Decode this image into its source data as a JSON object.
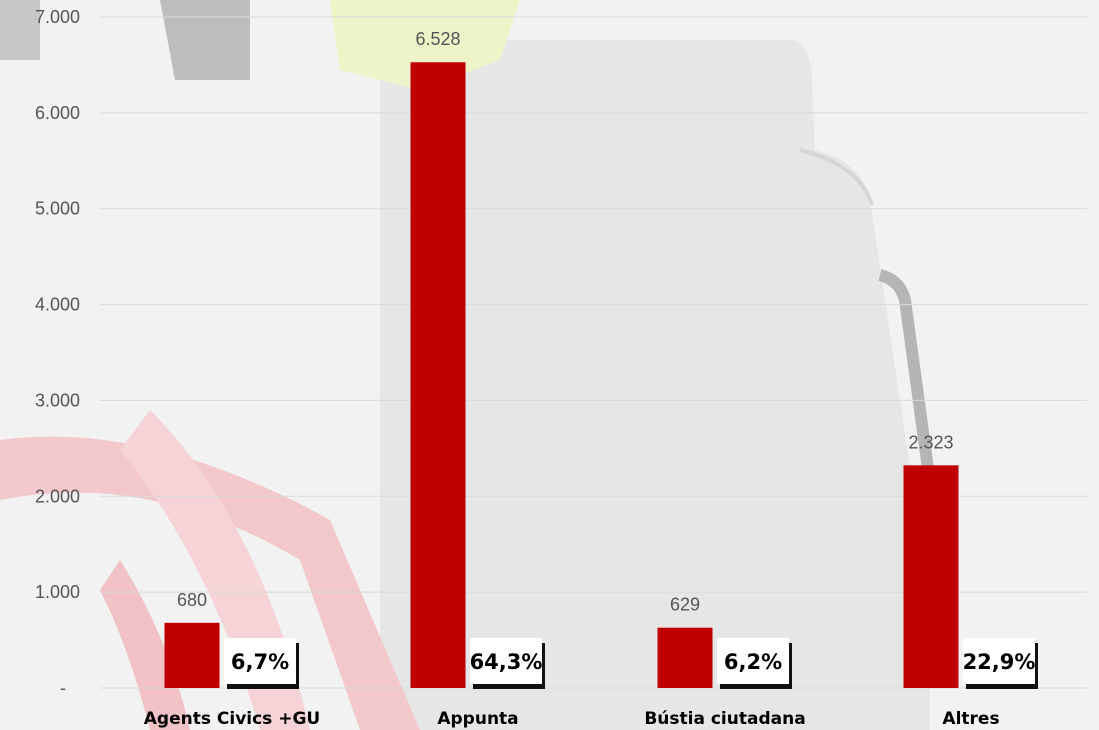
{
  "chart_data": {
    "type": "bar",
    "categories": [
      "Agents Civics +GU",
      "Appunta",
      "Bústia ciutadana",
      "Altres"
    ],
    "values": [
      680,
      6528,
      629,
      2323
    ],
    "value_labels": [
      "680",
      "6.528",
      "629",
      "2.323"
    ],
    "percent_labels": [
      "6,7%",
      "64,3%",
      "6,2%",
      "22,9%"
    ],
    "ylim": [
      0,
      7000
    ],
    "yticks": [
      0,
      1000,
      2000,
      3000,
      4000,
      5000,
      6000,
      7000
    ],
    "ytick_labels": [
      "-",
      "1.000",
      "2.000",
      "3.000",
      "4.000",
      "5.000",
      "6.000",
      "7.000"
    ],
    "grid": true,
    "legend": "none",
    "title": "",
    "xlabel": "",
    "ylabel": ""
  },
  "colors": {
    "bar": "#c00000",
    "grid": "#d9d9d9",
    "tick_text": "#555555",
    "category_text": "#000000",
    "percent_box": "#ffffff",
    "percent_shadow": "#111111"
  }
}
